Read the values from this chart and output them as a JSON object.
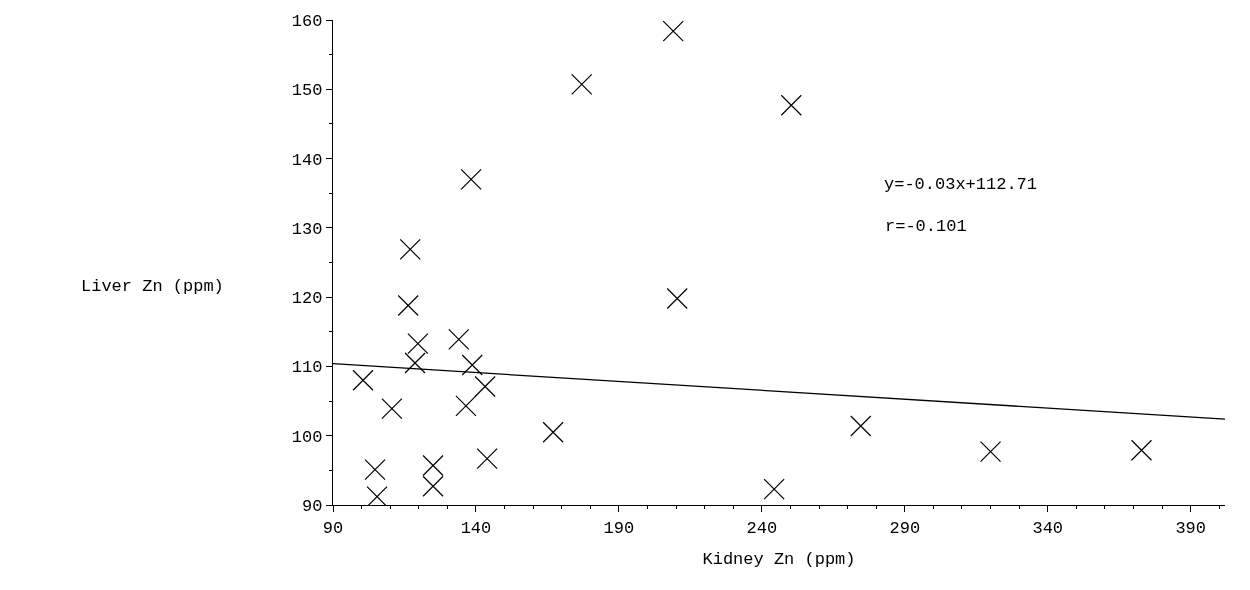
{
  "chart_data": {
    "type": "scatter",
    "xlabel": "Kidney Zn (ppm)",
    "ylabel": "Liver Zn (ppm)",
    "xlim": [
      90,
      402
    ],
    "xticks": [
      90,
      140,
      190,
      240,
      290,
      340,
      390
    ],
    "ylim": [
      90,
      160
    ],
    "yticks": [
      90,
      100,
      110,
      120,
      130,
      140,
      150,
      160
    ],
    "marker": "cross",
    "series": [
      {
        "color": "#000000",
        "x": [
          117,
          116.3,
          119.7,
          118.7,
          134,
          138.7,
          143.2,
          136.5,
          100.5,
          110.6,
          104.7,
          105.4,
          125,
          125,
          143.9,
          138.3,
          167,
          177,
          209,
          210.4,
          250.3,
          244.3,
          274.6,
          320,
          372.8
        ],
        "values": [
          126.9,
          118.8,
          113.3,
          110.5,
          113.9,
          110.2,
          107.1,
          104.3,
          108,
          103.9,
          95.1,
          91.2,
          95.7,
          92.7,
          96.7,
          137,
          100.5,
          150.7,
          158.4,
          119.8,
          147.7,
          92.3,
          101.4,
          97.7,
          97.9
        ]
      },
      {
        "type": "line",
        "color": "#000000",
        "x": [
          90,
          402
        ],
        "values": [
          110.4,
          102.4
        ],
        "marker": "none",
        "line_style": "solid"
      }
    ],
    "annotations": [
      "y=-0.03x+112.71",
      "r=-0.101"
    ]
  }
}
